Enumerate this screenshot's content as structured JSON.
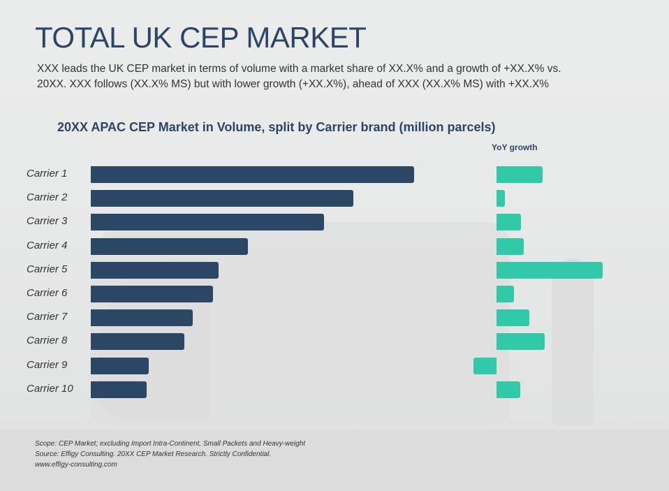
{
  "header": {
    "title": "TOTAL UK CEP MARKET",
    "subtitle_line1": "XXX leads the UK CEP market in terms of volume with a market share of XX.X% and a growth of +XX.X% vs.",
    "subtitle_line2": "20XX. XXX follows (XX.X% MS) but with lower growth (+XX.X%), ahead of XXX (XX.X% MS) with +XX.X%"
  },
  "chart": {
    "title": "20XX APAC CEP Market in Volume, split by Carrier brand (million parcels)",
    "yoy_title": "YoY growth"
  },
  "colors": {
    "volume_bar": "#2c4766",
    "yoy_bar": "#31c9a9",
    "title": "#2c4566"
  },
  "chart_data": [
    {
      "type": "bar",
      "orientation": "horizontal",
      "title": "20XX APAC CEP Market in Volume, split by Carrier brand (million parcels)",
      "xlabel": "",
      "ylabel": "",
      "categories": [
        "Carrier 1",
        "Carrier 2",
        "Carrier 3",
        "Carrier 4",
        "Carrier 5",
        "Carrier 6",
        "Carrier 7",
        "Carrier 8",
        "Carrier 9",
        "Carrier 10"
      ],
      "values": [
        463,
        376,
        334,
        225,
        183,
        175,
        146,
        134,
        83,
        80
      ],
      "value_units": "relative (no axis or data labels shown)",
      "grid": false,
      "legend": null
    },
    {
      "type": "bar",
      "orientation": "horizontal",
      "title": "YoY growth",
      "categories": [
        "Carrier 1",
        "Carrier 2",
        "Carrier 3",
        "Carrier 4",
        "Carrier 5",
        "Carrier 6",
        "Carrier 7",
        "Carrier 8",
        "Carrier 9",
        "Carrier 10"
      ],
      "values": [
        66,
        12,
        35,
        39,
        152,
        25,
        47,
        69,
        -33,
        34
      ],
      "value_units": "relative (no axis or data labels shown)",
      "grid": false,
      "legend": null
    }
  ],
  "footer": {
    "scope": "Scope: CEP Market; excluding Import Intra-Continent, Small Packets and Heavy-weight",
    "source": "Source: Effigy Consulting. 20XX CEP Market Research. Strictly Confidential.",
    "website": "www.effigy-consulting.com"
  }
}
